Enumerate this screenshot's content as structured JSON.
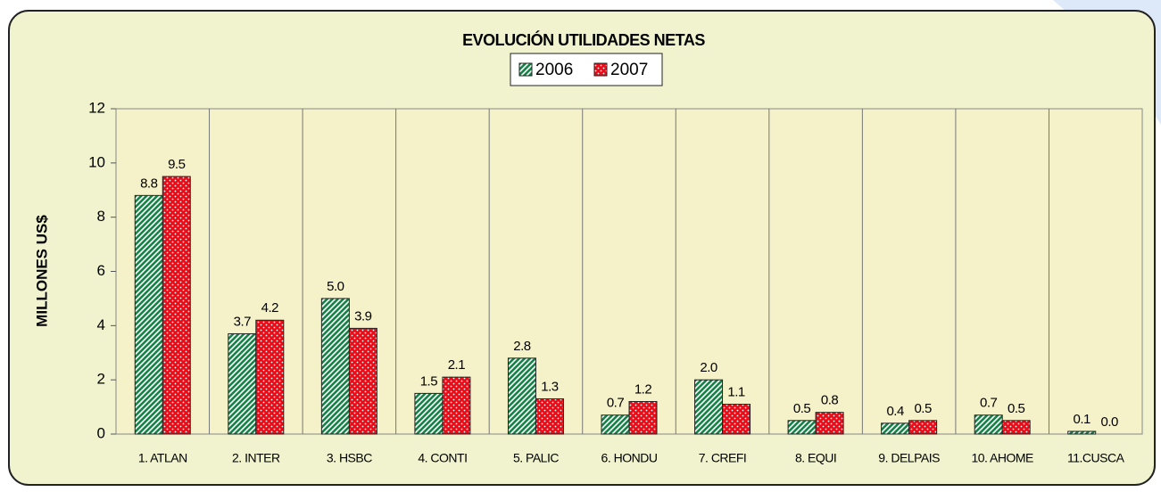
{
  "chart_data": {
    "type": "bar",
    "title": "EVOLUCIÓN UTILIDADES NETAS",
    "y_label": "MILLONES US$",
    "categories": [
      "1. ATLAN",
      "2. INTER",
      "3. HSBC",
      "4. CONTI",
      "5. PALIC",
      "6. HONDU",
      "7. CREFI",
      "8. EQUI",
      "9. DELPAIS",
      "10. AHOME",
      "11.CUSCA"
    ],
    "series": [
      {
        "name": "2006",
        "color": "#1a8048",
        "values": [
          8.8,
          3.7,
          5.0,
          1.5,
          2.8,
          0.7,
          2.0,
          0.5,
          0.4,
          0.7,
          0.1
        ],
        "value_labels": [
          "8.8",
          "3.7",
          "5.0",
          "1.5",
          "2.8",
          "0.7",
          "2.0",
          "0.5",
          "0.4",
          "0.7",
          "0.1"
        ]
      },
      {
        "name": "2007",
        "color": "#e3101c",
        "values": [
          9.5,
          4.2,
          3.9,
          2.1,
          1.3,
          1.2,
          1.1,
          0.8,
          0.5,
          0.5,
          0.0
        ],
        "value_labels": [
          "9.5",
          "4.2",
          "3.9",
          "2.1",
          "1.3",
          "1.2",
          "1.1",
          "0.8",
          "0.5",
          "0.5",
          "0.0"
        ]
      }
    ],
    "ylim": [
      0,
      12
    ],
    "yticks": [
      0,
      2,
      4,
      6,
      8,
      10,
      12
    ],
    "grid": false,
    "legend": "top"
  }
}
